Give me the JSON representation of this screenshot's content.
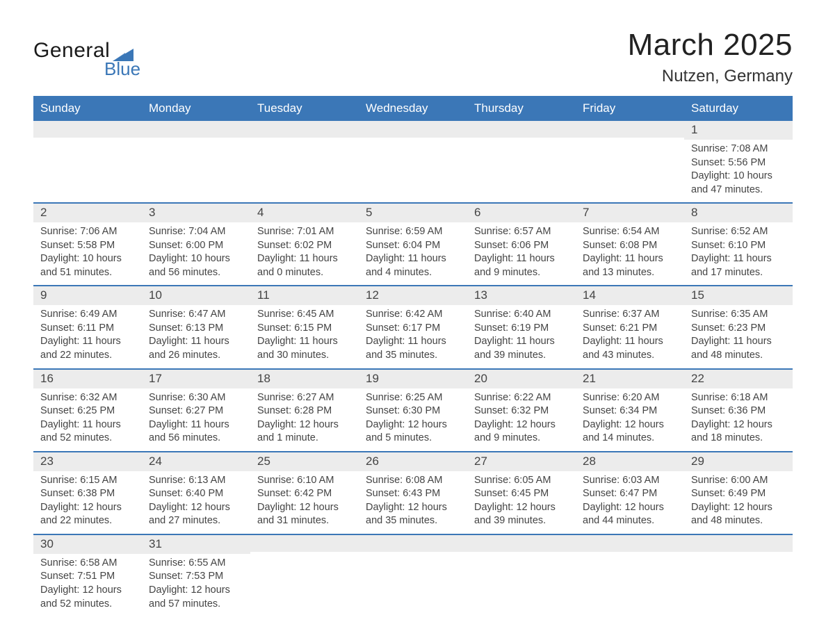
{
  "logo": {
    "line1": "General",
    "line2": "Blue",
    "tri_color": "#3b77b7",
    "text_dark": "#1a1a1a"
  },
  "title": {
    "month": "March 2025",
    "location": "Nutzen, Germany"
  },
  "colors": {
    "header_bg": "#3b77b7",
    "header_text": "#ffffff",
    "daynum_bg": "#ececec",
    "row_border": "#3b77b7",
    "body_text": "#444444",
    "page_bg": "#ffffff"
  },
  "typography": {
    "title_fontsize": 44,
    "location_fontsize": 24,
    "weekday_fontsize": 17,
    "daynum_fontsize": 17,
    "body_fontsize": 14.5,
    "font_family": "Arial"
  },
  "weekdays": [
    "Sunday",
    "Monday",
    "Tuesday",
    "Wednesday",
    "Thursday",
    "Friday",
    "Saturday"
  ],
  "weeks": [
    [
      {
        "day": "",
        "sunrise": "",
        "sunset": "",
        "daylight1": "",
        "daylight2": ""
      },
      {
        "day": "",
        "sunrise": "",
        "sunset": "",
        "daylight1": "",
        "daylight2": ""
      },
      {
        "day": "",
        "sunrise": "",
        "sunset": "",
        "daylight1": "",
        "daylight2": ""
      },
      {
        "day": "",
        "sunrise": "",
        "sunset": "",
        "daylight1": "",
        "daylight2": ""
      },
      {
        "day": "",
        "sunrise": "",
        "sunset": "",
        "daylight1": "",
        "daylight2": ""
      },
      {
        "day": "",
        "sunrise": "",
        "sunset": "",
        "daylight1": "",
        "daylight2": ""
      },
      {
        "day": "1",
        "sunrise": "Sunrise: 7:08 AM",
        "sunset": "Sunset: 5:56 PM",
        "daylight1": "Daylight: 10 hours",
        "daylight2": "and 47 minutes."
      }
    ],
    [
      {
        "day": "2",
        "sunrise": "Sunrise: 7:06 AM",
        "sunset": "Sunset: 5:58 PM",
        "daylight1": "Daylight: 10 hours",
        "daylight2": "and 51 minutes."
      },
      {
        "day": "3",
        "sunrise": "Sunrise: 7:04 AM",
        "sunset": "Sunset: 6:00 PM",
        "daylight1": "Daylight: 10 hours",
        "daylight2": "and 56 minutes."
      },
      {
        "day": "4",
        "sunrise": "Sunrise: 7:01 AM",
        "sunset": "Sunset: 6:02 PM",
        "daylight1": "Daylight: 11 hours",
        "daylight2": "and 0 minutes."
      },
      {
        "day": "5",
        "sunrise": "Sunrise: 6:59 AM",
        "sunset": "Sunset: 6:04 PM",
        "daylight1": "Daylight: 11 hours",
        "daylight2": "and 4 minutes."
      },
      {
        "day": "6",
        "sunrise": "Sunrise: 6:57 AM",
        "sunset": "Sunset: 6:06 PM",
        "daylight1": "Daylight: 11 hours",
        "daylight2": "and 9 minutes."
      },
      {
        "day": "7",
        "sunrise": "Sunrise: 6:54 AM",
        "sunset": "Sunset: 6:08 PM",
        "daylight1": "Daylight: 11 hours",
        "daylight2": "and 13 minutes."
      },
      {
        "day": "8",
        "sunrise": "Sunrise: 6:52 AM",
        "sunset": "Sunset: 6:10 PM",
        "daylight1": "Daylight: 11 hours",
        "daylight2": "and 17 minutes."
      }
    ],
    [
      {
        "day": "9",
        "sunrise": "Sunrise: 6:49 AM",
        "sunset": "Sunset: 6:11 PM",
        "daylight1": "Daylight: 11 hours",
        "daylight2": "and 22 minutes."
      },
      {
        "day": "10",
        "sunrise": "Sunrise: 6:47 AM",
        "sunset": "Sunset: 6:13 PM",
        "daylight1": "Daylight: 11 hours",
        "daylight2": "and 26 minutes."
      },
      {
        "day": "11",
        "sunrise": "Sunrise: 6:45 AM",
        "sunset": "Sunset: 6:15 PM",
        "daylight1": "Daylight: 11 hours",
        "daylight2": "and 30 minutes."
      },
      {
        "day": "12",
        "sunrise": "Sunrise: 6:42 AM",
        "sunset": "Sunset: 6:17 PM",
        "daylight1": "Daylight: 11 hours",
        "daylight2": "and 35 minutes."
      },
      {
        "day": "13",
        "sunrise": "Sunrise: 6:40 AM",
        "sunset": "Sunset: 6:19 PM",
        "daylight1": "Daylight: 11 hours",
        "daylight2": "and 39 minutes."
      },
      {
        "day": "14",
        "sunrise": "Sunrise: 6:37 AM",
        "sunset": "Sunset: 6:21 PM",
        "daylight1": "Daylight: 11 hours",
        "daylight2": "and 43 minutes."
      },
      {
        "day": "15",
        "sunrise": "Sunrise: 6:35 AM",
        "sunset": "Sunset: 6:23 PM",
        "daylight1": "Daylight: 11 hours",
        "daylight2": "and 48 minutes."
      }
    ],
    [
      {
        "day": "16",
        "sunrise": "Sunrise: 6:32 AM",
        "sunset": "Sunset: 6:25 PM",
        "daylight1": "Daylight: 11 hours",
        "daylight2": "and 52 minutes."
      },
      {
        "day": "17",
        "sunrise": "Sunrise: 6:30 AM",
        "sunset": "Sunset: 6:27 PM",
        "daylight1": "Daylight: 11 hours",
        "daylight2": "and 56 minutes."
      },
      {
        "day": "18",
        "sunrise": "Sunrise: 6:27 AM",
        "sunset": "Sunset: 6:28 PM",
        "daylight1": "Daylight: 12 hours",
        "daylight2": "and 1 minute."
      },
      {
        "day": "19",
        "sunrise": "Sunrise: 6:25 AM",
        "sunset": "Sunset: 6:30 PM",
        "daylight1": "Daylight: 12 hours",
        "daylight2": "and 5 minutes."
      },
      {
        "day": "20",
        "sunrise": "Sunrise: 6:22 AM",
        "sunset": "Sunset: 6:32 PM",
        "daylight1": "Daylight: 12 hours",
        "daylight2": "and 9 minutes."
      },
      {
        "day": "21",
        "sunrise": "Sunrise: 6:20 AM",
        "sunset": "Sunset: 6:34 PM",
        "daylight1": "Daylight: 12 hours",
        "daylight2": "and 14 minutes."
      },
      {
        "day": "22",
        "sunrise": "Sunrise: 6:18 AM",
        "sunset": "Sunset: 6:36 PM",
        "daylight1": "Daylight: 12 hours",
        "daylight2": "and 18 minutes."
      }
    ],
    [
      {
        "day": "23",
        "sunrise": "Sunrise: 6:15 AM",
        "sunset": "Sunset: 6:38 PM",
        "daylight1": "Daylight: 12 hours",
        "daylight2": "and 22 minutes."
      },
      {
        "day": "24",
        "sunrise": "Sunrise: 6:13 AM",
        "sunset": "Sunset: 6:40 PM",
        "daylight1": "Daylight: 12 hours",
        "daylight2": "and 27 minutes."
      },
      {
        "day": "25",
        "sunrise": "Sunrise: 6:10 AM",
        "sunset": "Sunset: 6:42 PM",
        "daylight1": "Daylight: 12 hours",
        "daylight2": "and 31 minutes."
      },
      {
        "day": "26",
        "sunrise": "Sunrise: 6:08 AM",
        "sunset": "Sunset: 6:43 PM",
        "daylight1": "Daylight: 12 hours",
        "daylight2": "and 35 minutes."
      },
      {
        "day": "27",
        "sunrise": "Sunrise: 6:05 AM",
        "sunset": "Sunset: 6:45 PM",
        "daylight1": "Daylight: 12 hours",
        "daylight2": "and 39 minutes."
      },
      {
        "day": "28",
        "sunrise": "Sunrise: 6:03 AM",
        "sunset": "Sunset: 6:47 PM",
        "daylight1": "Daylight: 12 hours",
        "daylight2": "and 44 minutes."
      },
      {
        "day": "29",
        "sunrise": "Sunrise: 6:00 AM",
        "sunset": "Sunset: 6:49 PM",
        "daylight1": "Daylight: 12 hours",
        "daylight2": "and 48 minutes."
      }
    ],
    [
      {
        "day": "30",
        "sunrise": "Sunrise: 6:58 AM",
        "sunset": "Sunset: 7:51 PM",
        "daylight1": "Daylight: 12 hours",
        "daylight2": "and 52 minutes."
      },
      {
        "day": "31",
        "sunrise": "Sunrise: 6:55 AM",
        "sunset": "Sunset: 7:53 PM",
        "daylight1": "Daylight: 12 hours",
        "daylight2": "and 57 minutes."
      },
      {
        "day": "",
        "sunrise": "",
        "sunset": "",
        "daylight1": "",
        "daylight2": ""
      },
      {
        "day": "",
        "sunrise": "",
        "sunset": "",
        "daylight1": "",
        "daylight2": ""
      },
      {
        "day": "",
        "sunrise": "",
        "sunset": "",
        "daylight1": "",
        "daylight2": ""
      },
      {
        "day": "",
        "sunrise": "",
        "sunset": "",
        "daylight1": "",
        "daylight2": ""
      },
      {
        "day": "",
        "sunrise": "",
        "sunset": "",
        "daylight1": "",
        "daylight2": ""
      }
    ]
  ]
}
